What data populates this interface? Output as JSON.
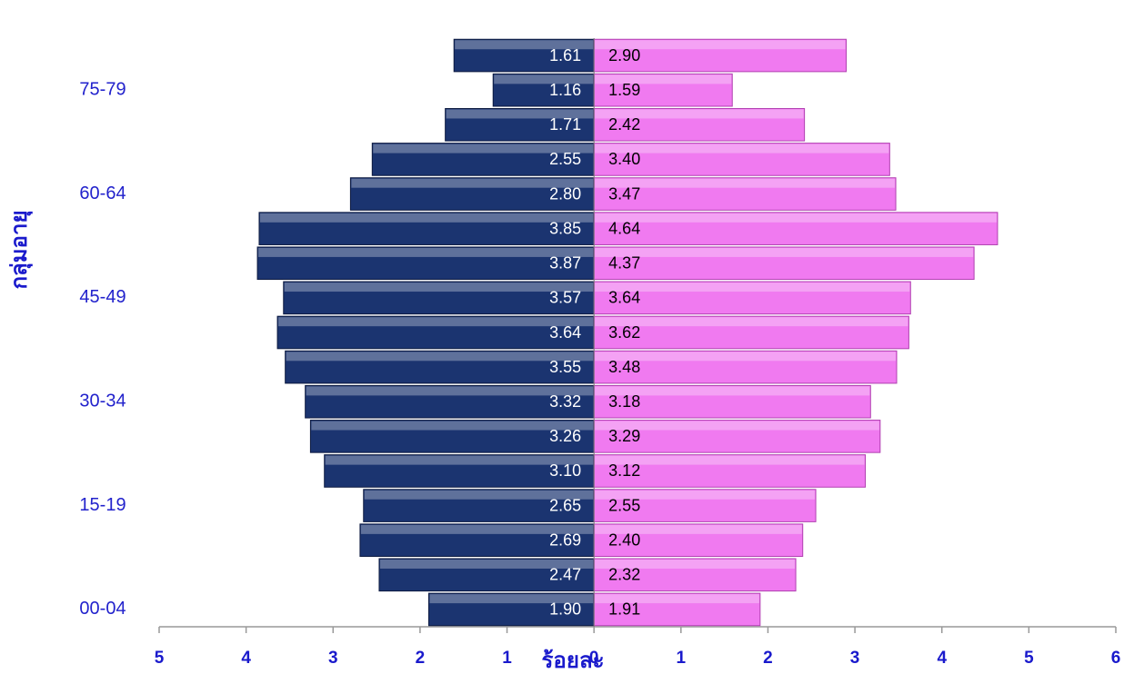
{
  "chart_data": {
    "type": "pyramid",
    "x_label": "ร้อยละ",
    "y_label": "กลุ่มอายุ",
    "categories": [
      "00-04",
      null,
      null,
      "15-19",
      null,
      null,
      "30-34",
      null,
      null,
      "45-49",
      null,
      null,
      "60-64",
      null,
      null,
      "75-79",
      null
    ],
    "series": [
      {
        "direction": "left",
        "color": "#1b3470",
        "values": [
          1.9,
          2.47,
          2.69,
          2.65,
          3.1,
          3.26,
          3.32,
          3.55,
          3.64,
          3.57,
          3.87,
          3.85,
          2.8,
          2.55,
          1.71,
          1.16,
          1.61
        ],
        "value_labels": [
          "1.90",
          "2.47",
          "2.69",
          "2.65",
          "3.10",
          "3.26",
          "3.32",
          "3.55",
          "3.64",
          "3.57",
          "3.87",
          "3.85",
          "2.80",
          "2.55",
          "1.71",
          "1.16",
          "1.61"
        ]
      },
      {
        "direction": "right",
        "color": "#f07af0",
        "values": [
          1.91,
          2.32,
          2.4,
          2.55,
          3.12,
          3.29,
          3.18,
          3.48,
          3.62,
          3.64,
          4.37,
          4.64,
          3.47,
          3.4,
          2.42,
          1.59,
          2.9
        ],
        "value_labels": [
          "1.91",
          "2.32",
          "2.40",
          "2.55",
          "3.12",
          "3.29",
          "3.18",
          "3.48",
          "3.62",
          "3.64",
          "4.37",
          "4.64",
          "3.47",
          "3.40",
          "2.42",
          "1.59",
          "2.90"
        ]
      }
    ],
    "xlim": [
      -5,
      6
    ],
    "xticks": [
      {
        "value": -5,
        "label": "5"
      },
      {
        "value": -4,
        "label": "4"
      },
      {
        "value": -3,
        "label": "3"
      },
      {
        "value": -2,
        "label": "2"
      },
      {
        "value": -1,
        "label": "1"
      },
      0,
      1,
      2,
      3,
      4,
      5,
      6
    ]
  }
}
